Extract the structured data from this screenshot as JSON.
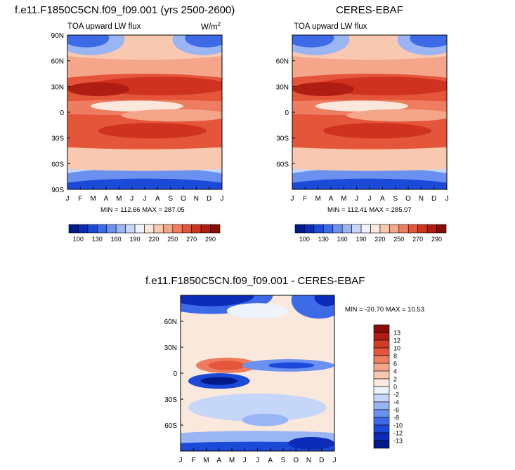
{
  "panels": {
    "model": {
      "title": "f.e11.F1850C5CN.f09_f09.001 (yrs 2500-2600)",
      "variable": "TOA upward LW flux",
      "units_base": "W/m",
      "units_exp": "2",
      "stats": "MIN = 112.66 MAX = 287.05"
    },
    "obs": {
      "title": "CERES-EBAF",
      "variable": "TOA upward LW flux",
      "stats": "MIN = 112.41 MAX = 285.07"
    },
    "diff": {
      "title": "f.e11.F1850C5CN.f09_f09.001 - CERES-EBAF",
      "stats": "MIN = -20.70 MAX =  10.53"
    }
  },
  "chart_data": [
    {
      "type": "heatmap",
      "name": "model",
      "title": "f.e11.F1850C5CN.f09_f09.001 (yrs 2500-2600)",
      "subtitle": "TOA upward LW flux",
      "units": "W/m2",
      "x": [
        "J",
        "F",
        "M",
        "A",
        "M",
        "J",
        "J",
        "A",
        "S",
        "O",
        "N",
        "D",
        "J"
      ],
      "y_ticks": [
        90,
        60,
        30,
        0,
        -30,
        -60,
        -90
      ],
      "y_tick_labels": [
        "90N",
        "60N",
        "30N",
        "0",
        "30S",
        "60S",
        "90S"
      ],
      "ylim": [
        -90,
        90
      ],
      "min": 112.66,
      "max": 287.05,
      "colorbar": {
        "labels": [
          "100",
          "130",
          "160",
          "190",
          "220",
          "250",
          "270",
          "290"
        ],
        "colors": [
          "#001a88",
          "#0b2bb8",
          "#1c4ad8",
          "#3d6be8",
          "#6a91f0",
          "#9ab5f4",
          "#c6d6f8",
          "#eef2fb",
          "#fbe8dc",
          "#f8c8b0",
          "#f4a58a",
          "#ee7d60",
          "#e4553a",
          "#cf3320",
          "#b01d12",
          "#8a0c06"
        ]
      }
    },
    {
      "type": "heatmap",
      "name": "obs",
      "title": "CERES-EBAF",
      "subtitle": "TOA upward LW flux",
      "x": [
        "J",
        "F",
        "M",
        "A",
        "M",
        "J",
        "J",
        "A",
        "S",
        "O",
        "N",
        "D",
        "J"
      ],
      "y_ticks": [
        60,
        30,
        0,
        -30,
        -60
      ],
      "y_tick_labels": [
        "60N",
        "30N",
        "0",
        "30S",
        "60S"
      ],
      "ylim": [
        -90,
        90
      ],
      "min": 112.41,
      "max": 285.07,
      "colorbar": {
        "labels": [
          "100",
          "130",
          "160",
          "190",
          "220",
          "250",
          "270",
          "290"
        ],
        "colors": [
          "#001a88",
          "#0b2bb8",
          "#1c4ad8",
          "#3d6be8",
          "#6a91f0",
          "#9ab5f4",
          "#c6d6f8",
          "#eef2fb",
          "#fbe8dc",
          "#f8c8b0",
          "#f4a58a",
          "#ee7d60",
          "#e4553a",
          "#cf3320",
          "#b01d12",
          "#8a0c06"
        ]
      }
    },
    {
      "type": "heatmap",
      "name": "diff",
      "title": "f.e11.F1850C5CN.f09_f09.001 - CERES-EBAF",
      "x": [
        "J",
        "F",
        "M",
        "A",
        "M",
        "J",
        "J",
        "A",
        "S",
        "O",
        "N",
        "D",
        "J"
      ],
      "y_ticks": [
        60,
        30,
        0,
        -30,
        -60
      ],
      "y_tick_labels": [
        "60N",
        "30N",
        "0",
        "30S",
        "60S"
      ],
      "ylim": [
        -90,
        90
      ],
      "min": -20.7,
      "max": 10.53,
      "colorbar": {
        "labels": [
          "13",
          "12",
          "10",
          "8",
          "6",
          "4",
          "2",
          "0",
          "-2",
          "-4",
          "-6",
          "-8",
          "-10",
          "-12",
          "-13"
        ],
        "colors": [
          "#8a0c06",
          "#b01d12",
          "#d23a22",
          "#e4553a",
          "#ee7d60",
          "#f4a58a",
          "#f8c8b0",
          "#fbe8dc",
          "#eef2fb",
          "#c6d6f8",
          "#9ab5f4",
          "#6a91f0",
          "#3d6be8",
          "#1c4ad8",
          "#0b2bb8",
          "#001a88"
        ]
      }
    }
  ]
}
